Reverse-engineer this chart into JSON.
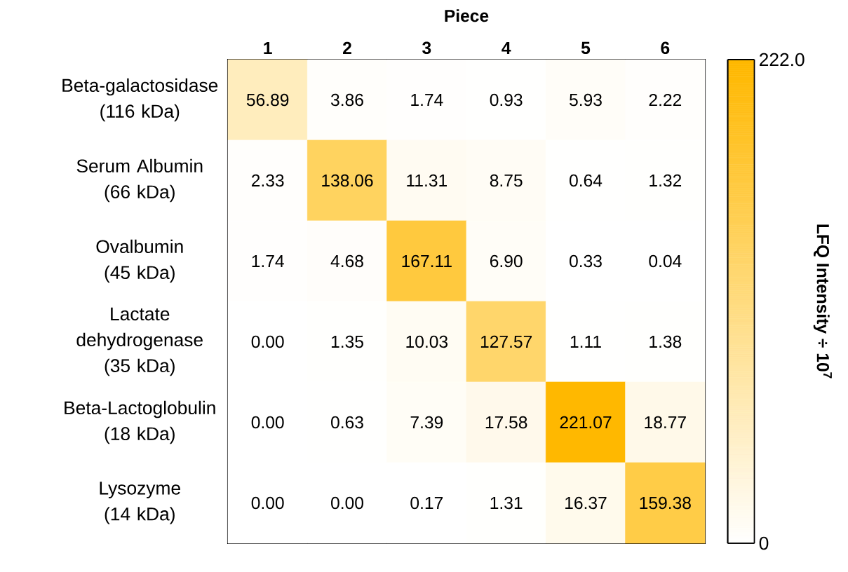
{
  "chart_data": {
    "type": "heatmap",
    "xlabel": "Piece",
    "clabel": "LFQ Intensity ÷ 10$^{7}$",
    "categories": [
      "1",
      "2",
      "3",
      "4",
      "5",
      "6"
    ],
    "y_categories": [
      "Beta-galactosidase (116 kDa)",
      "Serum Albumin (66 kDa)",
      "Ovalbumin (45 kDa)",
      "Lactate dehydrogenase (35 kDa)",
      "Beta-Lactoglobulin (18 kDa)",
      "Lysozyme (14 kDa)"
    ],
    "cells": [
      [
        56.89,
        3.86,
        1.74,
        0.93,
        5.93,
        2.22
      ],
      [
        2.33,
        138.06,
        11.31,
        8.75,
        0.64,
        1.32
      ],
      [
        1.74,
        4.68,
        167.11,
        6.9,
        0.33,
        0.04
      ],
      [
        0.0,
        1.35,
        10.03,
        127.57,
        1.11,
        1.38
      ],
      [
        0.0,
        0.63,
        7.39,
        17.58,
        221.07,
        18.77
      ],
      [
        0.0,
        0.0,
        0.17,
        1.31,
        16.37,
        159.38
      ]
    ],
    "cell_labels": [
      [
        "56.89",
        "3.86",
        "1.74",
        "0.93",
        "5.93",
        "2.22"
      ],
      [
        "2.33",
        "138.06",
        "11.31",
        "8.75",
        "0.64",
        "1.32"
      ],
      [
        "1.74",
        "4.68",
        "167.11",
        "6.90",
        "0.33",
        "0.04"
      ],
      [
        "0.00",
        "1.35",
        "10.03",
        "127.57",
        "1.11",
        "1.38"
      ],
      [
        "0.00",
        "0.63",
        "7.39",
        "17.58",
        "221.07",
        "18.77"
      ],
      [
        "0.00",
        "0.00",
        "0.17",
        "1.31",
        "16.37",
        "159.38"
      ]
    ],
    "clim": [
      0,
      222.0
    ],
    "cticks": [
      {
        "value": 0,
        "label": "0"
      },
      {
        "value": 222.0,
        "label": "222.0"
      }
    ]
  }
}
